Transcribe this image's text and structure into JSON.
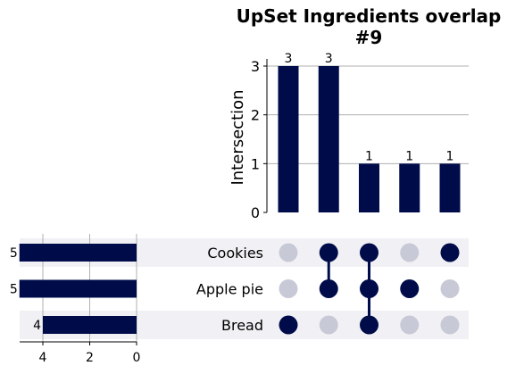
{
  "chart_data": {
    "type": "upset",
    "title": "UpSet Ingredients overlap #9",
    "title_lines": [
      "UpSet Ingredients overlap",
      "#9"
    ],
    "ylabel": "Intersection",
    "ylim": [
      0,
      3
    ],
    "yticks": [
      "0",
      "1",
      "2",
      "3"
    ],
    "grid": true,
    "sets": [
      "Cookies",
      "Apple pie",
      "Bread"
    ],
    "set_sizes": [
      5,
      5,
      4
    ],
    "set_size_labels": [
      "5",
      "5",
      "4"
    ],
    "set_size_ticks": [
      "4",
      "2",
      "0"
    ],
    "intersections": [
      {
        "members": [
          "Bread"
        ],
        "count": 3,
        "label": "3"
      },
      {
        "members": [
          "Cookies",
          "Apple pie"
        ],
        "count": 3,
        "label": "3"
      },
      {
        "members": [
          "Cookies",
          "Apple pie",
          "Bread"
        ],
        "count": 1,
        "label": "1"
      },
      {
        "members": [
          "Apple pie"
        ],
        "count": 1,
        "label": "1"
      },
      {
        "members": [
          "Cookies"
        ],
        "count": 1,
        "label": "1"
      }
    ],
    "colors": {
      "bar": "#000c4a",
      "dot_active": "#000c4a",
      "dot_inactive": "#c8c9d6",
      "row_shade": "#f1f1f5",
      "grid": "#b0b0b0"
    }
  }
}
